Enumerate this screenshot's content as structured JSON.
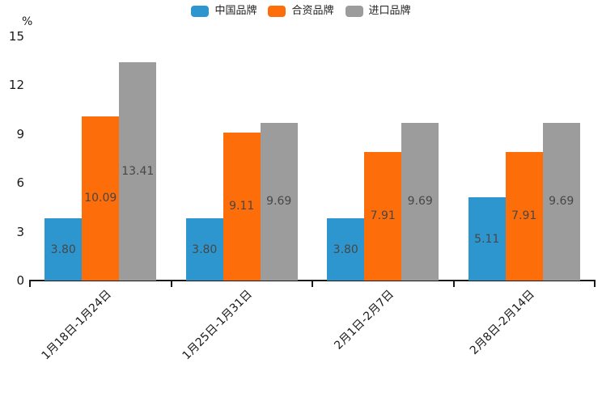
{
  "legend": {
    "items": [
      {
        "label": "中国品牌",
        "color": "#2E96CE"
      },
      {
        "label": "合资品牌",
        "color": "#FD6D0A"
      },
      {
        "label": "进口品牌",
        "color": "#9C9C9C"
      }
    ]
  },
  "y_axis": {
    "unit": "%",
    "ticks": [
      0,
      3,
      6,
      9,
      12,
      15
    ]
  },
  "chart_data": {
    "type": "bar",
    "title": "",
    "categories": [
      "1月18日-1月24日",
      "1月25日-1月31日",
      "2月1日-2月7日",
      "2月8日-2月14日"
    ],
    "series": [
      {
        "name": "中国品牌",
        "color": "#2E96CE",
        "values": [
          3.8,
          3.8,
          3.8,
          5.11
        ],
        "labels": [
          "3.80",
          "3.80",
          "3.80",
          "5.11"
        ]
      },
      {
        "name": "合资品牌",
        "color": "#FD6D0A",
        "values": [
          10.09,
          9.11,
          7.91,
          7.91
        ],
        "labels": [
          "10.09",
          "9.11",
          "7.91",
          "7.91"
        ]
      },
      {
        "name": "进口品牌",
        "color": "#9C9C9C",
        "values": [
          13.41,
          9.69,
          9.69,
          9.69
        ],
        "labels": [
          "13.41",
          "9.69",
          "9.69",
          "9.69"
        ]
      }
    ],
    "ylabel": "%",
    "xlabel": "",
    "ylim": [
      0,
      15
    ],
    "y_tick_step": 3,
    "grid": false,
    "legend_position": "top",
    "x_label_rotation": -45,
    "value_label_position": "inside-center"
  }
}
